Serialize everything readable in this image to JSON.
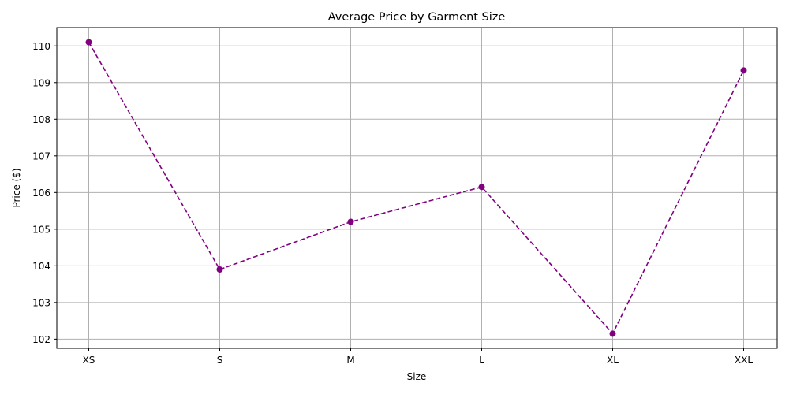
{
  "chart_data": {
    "type": "line",
    "title": "Average Price by Garment Size",
    "xlabel": "Size",
    "ylabel": "Price ($)",
    "categories": [
      "XS",
      "S",
      "M",
      "L",
      "XL",
      "XXL"
    ],
    "series": [
      {
        "values": [
          110.1,
          103.9,
          105.2,
          106.15,
          102.15,
          109.33
        ]
      }
    ],
    "ylim": [
      101.75,
      110.5
    ],
    "yticks": [
      102,
      103,
      104,
      105,
      106,
      107,
      108,
      109,
      110
    ],
    "grid": true,
    "line_style": "dashed",
    "marker": "circle",
    "colors": {
      "series": "#800080",
      "grid": "#b0b0b0",
      "axis": "#000000"
    }
  }
}
